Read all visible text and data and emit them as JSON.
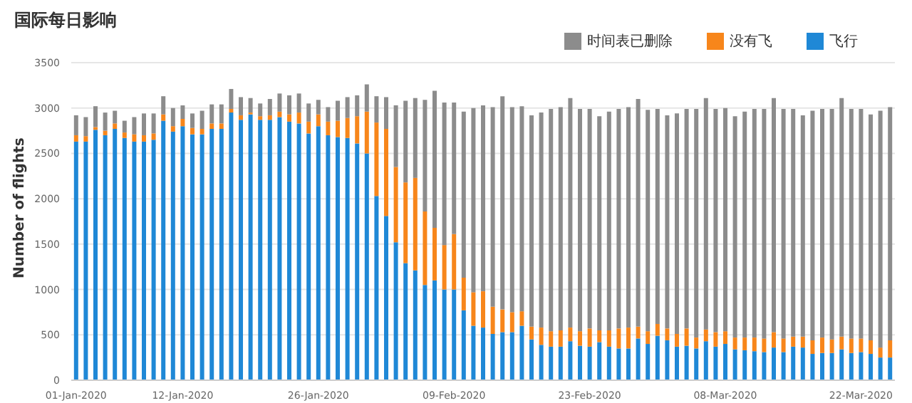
{
  "chart_data": {
    "type": "bar",
    "title": "国际每日影响",
    "ylabel": "Number of flights",
    "categories": [
      "01-Jan-2020",
      null,
      null,
      null,
      null,
      null,
      null,
      null,
      null,
      null,
      null,
      "12-Jan-2020",
      null,
      null,
      null,
      null,
      null,
      null,
      null,
      null,
      null,
      null,
      null,
      null,
      null,
      "26-Jan-2020",
      null,
      null,
      null,
      null,
      null,
      null,
      null,
      null,
      null,
      null,
      null,
      null,
      null,
      "09-Feb-2020",
      null,
      null,
      null,
      null,
      null,
      null,
      null,
      null,
      null,
      null,
      null,
      null,
      null,
      "23-Feb-2020",
      null,
      null,
      null,
      null,
      null,
      null,
      null,
      null,
      null,
      null,
      null,
      null,
      null,
      "08-Mar-2020",
      null,
      null,
      null,
      null,
      null,
      null,
      null,
      null,
      null,
      null,
      null,
      null,
      null,
      "22-Mar-2020",
      null,
      null,
      null
    ],
    "stacked": true,
    "series": [
      {
        "name": "飞行",
        "color": "#1f88d6",
        "values": [
          2630,
          2630,
          2760,
          2700,
          2770,
          2670,
          2630,
          2630,
          2650,
          2860,
          2740,
          2800,
          2710,
          2710,
          2770,
          2770,
          2950,
          2870,
          2930,
          2870,
          2870,
          2900,
          2850,
          2830,
          2720,
          2800,
          2700,
          2680,
          2670,
          2610,
          2500,
          2030,
          1810,
          1520,
          1290,
          1210,
          1050,
          1100,
          1000,
          1000,
          770,
          600,
          580,
          510,
          530,
          530,
          600,
          450,
          390,
          370,
          370,
          430,
          380,
          370,
          420,
          370,
          350,
          350,
          460,
          400,
          490,
          440,
          370,
          380,
          350,
          430,
          370,
          400,
          340,
          330,
          320,
          310,
          360,
          310,
          370,
          360,
          290,
          300,
          300,
          340,
          300,
          310,
          290,
          250,
          250
        ]
      },
      {
        "name": "没有飞",
        "color": "#f7861b",
        "values": [
          70,
          60,
          30,
          50,
          60,
          60,
          80,
          70,
          70,
          70,
          60,
          80,
          70,
          60,
          60,
          60,
          40,
          50,
          20,
          40,
          50,
          60,
          80,
          120,
          130,
          130,
          150,
          180,
          220,
          300,
          460,
          810,
          960,
          830,
          890,
          1020,
          810,
          580,
          490,
          610,
          360,
          370,
          400,
          300,
          250,
          220,
          160,
          140,
          190,
          170,
          180,
          150,
          160,
          200,
          130,
          180,
          220,
          230,
          130,
          140,
          130,
          130,
          140,
          190,
          120,
          130,
          160,
          140,
          130,
          140,
          150,
          150,
          170,
          150,
          110,
          120,
          150,
          170,
          150,
          140,
          160,
          150,
          150,
          110,
          190
        ]
      },
      {
        "name": "时间表已删除",
        "color": "#8c8c8c",
        "values": [
          220,
          210,
          230,
          200,
          140,
          130,
          190,
          240,
          220,
          200,
          200,
          150,
          160,
          200,
          210,
          210,
          220,
          200,
          160,
          140,
          180,
          200,
          210,
          210,
          200,
          160,
          160,
          220,
          230,
          230,
          300,
          290,
          350,
          680,
          900,
          880,
          1230,
          1510,
          1570,
          1450,
          1830,
          2030,
          2050,
          2200,
          2350,
          2260,
          2260,
          2330,
          2370,
          2450,
          2460,
          2530,
          2450,
          2420,
          2360,
          2410,
          2420,
          2430,
          2510,
          2440,
          2370,
          2350,
          2430,
          2420,
          2520,
          2550,
          2460,
          2460,
          2440,
          2490,
          2520,
          2530,
          2580,
          2530,
          2510,
          2440,
          2530,
          2520,
          2540,
          2630,
          2530,
          2530,
          2490,
          2610,
          2570
        ]
      }
    ],
    "ylim": [
      0,
      3500
    ],
    "yticks": [
      0,
      500,
      1000,
      1500,
      2000,
      2500,
      3000,
      3500
    ],
    "grid": "y",
    "legend": "top right"
  }
}
